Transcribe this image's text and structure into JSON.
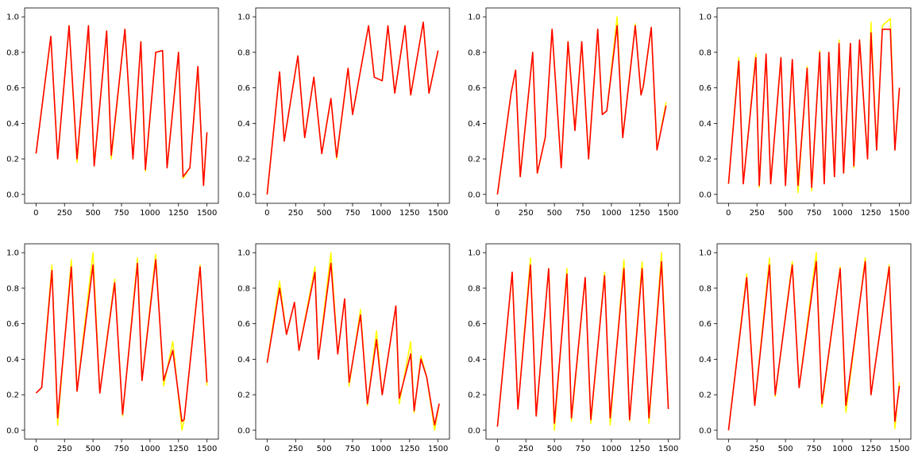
{
  "figure": {
    "rows": 2,
    "cols": 4,
    "colors": {
      "series_a": "#ffff00",
      "series_b": "#ff0000",
      "axes": "#000000"
    },
    "xticks": [
      0,
      250,
      500,
      750,
      1000,
      1250,
      1500
    ],
    "yticks": [
      0.0,
      0.2,
      0.4,
      0.6,
      0.8,
      1.0
    ],
    "ytick_labels": [
      "0.0",
      "0.2",
      "0.4",
      "0.6",
      "0.8",
      "1.0"
    ]
  },
  "chart_data": [
    {
      "type": "line",
      "grid": false,
      "xlim": [
        -100,
        1600
      ],
      "ylim": [
        -0.05,
        1.05
      ],
      "x": [
        0,
        130,
        190,
        290,
        360,
        460,
        510,
        620,
        660,
        780,
        850,
        920,
        960,
        1050,
        1110,
        1150,
        1250,
        1290,
        1350,
        1420,
        1470,
        1500
      ],
      "series": [
        {
          "values": [
            0.23,
            0.89,
            0.2,
            0.95,
            0.18,
            0.95,
            0.16,
            0.92,
            0.2,
            0.93,
            0.2,
            0.86,
            0.13,
            0.8,
            0.81,
            0.15,
            0.8,
            0.09,
            0.15,
            0.72,
            0.05,
            0.35
          ]
        },
        {
          "values": [
            0.23,
            0.89,
            0.2,
            0.95,
            0.2,
            0.95,
            0.16,
            0.92,
            0.22,
            0.93,
            0.2,
            0.86,
            0.14,
            0.8,
            0.81,
            0.15,
            0.8,
            0.1,
            0.15,
            0.72,
            0.05,
            0.35
          ]
        }
      ]
    },
    {
      "type": "line",
      "grid": false,
      "xlim": [
        -100,
        1600
      ],
      "ylim": [
        -0.05,
        1.05
      ],
      "x": [
        0,
        110,
        150,
        270,
        330,
        410,
        480,
        560,
        610,
        710,
        750,
        890,
        940,
        1010,
        1060,
        1120,
        1210,
        1260,
        1370,
        1420,
        1500
      ],
      "series": [
        {
          "values": [
            0.0,
            0.69,
            0.3,
            0.78,
            0.32,
            0.66,
            0.23,
            0.54,
            0.2,
            0.71,
            0.45,
            0.95,
            0.66,
            0.64,
            0.95,
            0.57,
            0.95,
            0.56,
            0.97,
            0.57,
            0.81
          ]
        },
        {
          "values": [
            0.0,
            0.69,
            0.3,
            0.78,
            0.32,
            0.66,
            0.23,
            0.54,
            0.21,
            0.71,
            0.45,
            0.95,
            0.66,
            0.64,
            0.95,
            0.57,
            0.95,
            0.56,
            0.97,
            0.57,
            0.81
          ]
        }
      ]
    },
    {
      "type": "line",
      "grid": false,
      "xlim": [
        -100,
        1600
      ],
      "ylim": [
        -0.05,
        1.05
      ],
      "x": [
        0,
        120,
        160,
        200,
        310,
        350,
        420,
        480,
        560,
        620,
        680,
        740,
        800,
        880,
        920,
        960,
        1050,
        1100,
        1210,
        1260,
        1280,
        1350,
        1400,
        1480
      ],
      "series": [
        {
          "values": [
            0.0,
            0.57,
            0.7,
            0.1,
            0.8,
            0.12,
            0.32,
            0.93,
            0.15,
            0.86,
            0.36,
            0.86,
            0.2,
            0.93,
            0.45,
            0.47,
            1.0,
            0.32,
            0.96,
            0.56,
            0.61,
            0.94,
            0.25,
            0.52
          ]
        },
        {
          "values": [
            0.0,
            0.57,
            0.7,
            0.1,
            0.8,
            0.12,
            0.32,
            0.93,
            0.15,
            0.86,
            0.36,
            0.86,
            0.2,
            0.93,
            0.45,
            0.47,
            0.95,
            0.32,
            0.95,
            0.56,
            0.61,
            0.94,
            0.25,
            0.5
          ]
        }
      ]
    },
    {
      "type": "line",
      "grid": false,
      "xlim": [
        -100,
        1600
      ],
      "ylim": [
        -0.05,
        1.05
      ],
      "x": [
        0,
        90,
        130,
        240,
        270,
        330,
        370,
        460,
        500,
        560,
        610,
        690,
        730,
        800,
        840,
        880,
        930,
        970,
        1010,
        1070,
        1100,
        1150,
        1220,
        1250,
        1300,
        1350,
        1420,
        1460,
        1500
      ],
      "series": [
        {
          "values": [
            0.06,
            0.77,
            0.06,
            0.79,
            0.04,
            0.79,
            0.06,
            0.77,
            0.05,
            0.76,
            0.01,
            0.72,
            0.02,
            0.81,
            0.06,
            0.8,
            0.1,
            0.87,
            0.12,
            0.85,
            0.15,
            0.87,
            0.2,
            0.97,
            0.25,
            0.95,
            0.99,
            0.25,
            0.6
          ]
        },
        {
          "values": [
            0.06,
            0.75,
            0.06,
            0.77,
            0.05,
            0.79,
            0.06,
            0.77,
            0.05,
            0.76,
            0.05,
            0.71,
            0.04,
            0.8,
            0.06,
            0.8,
            0.1,
            0.85,
            0.12,
            0.85,
            0.16,
            0.87,
            0.2,
            0.91,
            0.25,
            0.93,
            0.93,
            0.25,
            0.6
          ]
        }
      ]
    },
    {
      "type": "line",
      "grid": false,
      "xlim": [
        -100,
        1600
      ],
      "ylim": [
        -0.05,
        1.05
      ],
      "x": [
        0,
        50,
        140,
        190,
        310,
        360,
        500,
        560,
        690,
        760,
        890,
        930,
        1050,
        1120,
        1200,
        1280,
        1300,
        1440,
        1500
      ],
      "series": [
        {
          "values": [
            0.21,
            0.24,
            0.93,
            0.03,
            0.96,
            0.22,
            1.0,
            0.21,
            0.85,
            0.08,
            0.97,
            0.28,
            0.99,
            0.25,
            0.5,
            0.0,
            0.06,
            0.93,
            0.25
          ]
        },
        {
          "values": [
            0.21,
            0.24,
            0.9,
            0.07,
            0.92,
            0.22,
            0.93,
            0.21,
            0.83,
            0.09,
            0.94,
            0.28,
            0.96,
            0.28,
            0.45,
            0.05,
            0.06,
            0.92,
            0.27
          ]
        }
      ]
    },
    {
      "type": "line",
      "grid": false,
      "xlim": [
        -100,
        1600
      ],
      "ylim": [
        -0.05,
        1.05
      ],
      "x": [
        0,
        110,
        170,
        240,
        280,
        420,
        450,
        560,
        620,
        680,
        720,
        820,
        880,
        960,
        1010,
        1130,
        1160,
        1260,
        1290,
        1350,
        1400,
        1470,
        1510
      ],
      "series": [
        {
          "values": [
            0.38,
            0.84,
            0.54,
            0.72,
            0.45,
            0.92,
            0.4,
            1.0,
            0.43,
            0.74,
            0.25,
            0.68,
            0.14,
            0.56,
            0.2,
            0.7,
            0.15,
            0.5,
            0.1,
            0.42,
            0.3,
            0.0,
            0.15
          ]
        },
        {
          "values": [
            0.38,
            0.8,
            0.54,
            0.72,
            0.45,
            0.89,
            0.4,
            0.94,
            0.43,
            0.74,
            0.27,
            0.65,
            0.15,
            0.51,
            0.2,
            0.7,
            0.18,
            0.43,
            0.11,
            0.4,
            0.3,
            0.03,
            0.15
          ]
        }
      ]
    },
    {
      "type": "line",
      "grid": false,
      "xlim": [
        -100,
        1600
      ],
      "ylim": [
        -0.05,
        1.05
      ],
      "x": [
        0,
        130,
        180,
        290,
        340,
        450,
        500,
        610,
        650,
        770,
        820,
        940,
        990,
        1110,
        1160,
        1270,
        1330,
        1440,
        1500
      ],
      "series": [
        {
          "values": [
            0.02,
            0.89,
            0.12,
            0.97,
            0.08,
            0.91,
            0.0,
            0.91,
            0.05,
            0.86,
            0.04,
            0.89,
            0.03,
            0.96,
            0.05,
            0.95,
            0.04,
            1.0,
            0.12
          ]
        },
        {
          "values": [
            0.02,
            0.89,
            0.12,
            0.93,
            0.08,
            0.91,
            0.04,
            0.88,
            0.07,
            0.86,
            0.06,
            0.87,
            0.07,
            0.91,
            0.06,
            0.91,
            0.07,
            0.95,
            0.12
          ]
        }
      ]
    },
    {
      "type": "line",
      "grid": false,
      "xlim": [
        -100,
        1600
      ],
      "ylim": [
        -0.05,
        1.05
      ],
      "x": [
        0,
        160,
        230,
        360,
        410,
        560,
        620,
        770,
        820,
        980,
        1030,
        1200,
        1250,
        1410,
        1460,
        1500
      ],
      "series": [
        {
          "values": [
            0.0,
            0.88,
            0.14,
            0.97,
            0.19,
            0.95,
            0.24,
            1.0,
            0.13,
            0.92,
            0.1,
            0.97,
            0.2,
            0.93,
            0.01,
            0.27
          ]
        },
        {
          "values": [
            0.0,
            0.86,
            0.14,
            0.93,
            0.2,
            0.93,
            0.24,
            0.95,
            0.15,
            0.91,
            0.14,
            0.95,
            0.2,
            0.92,
            0.05,
            0.25
          ]
        }
      ]
    }
  ]
}
